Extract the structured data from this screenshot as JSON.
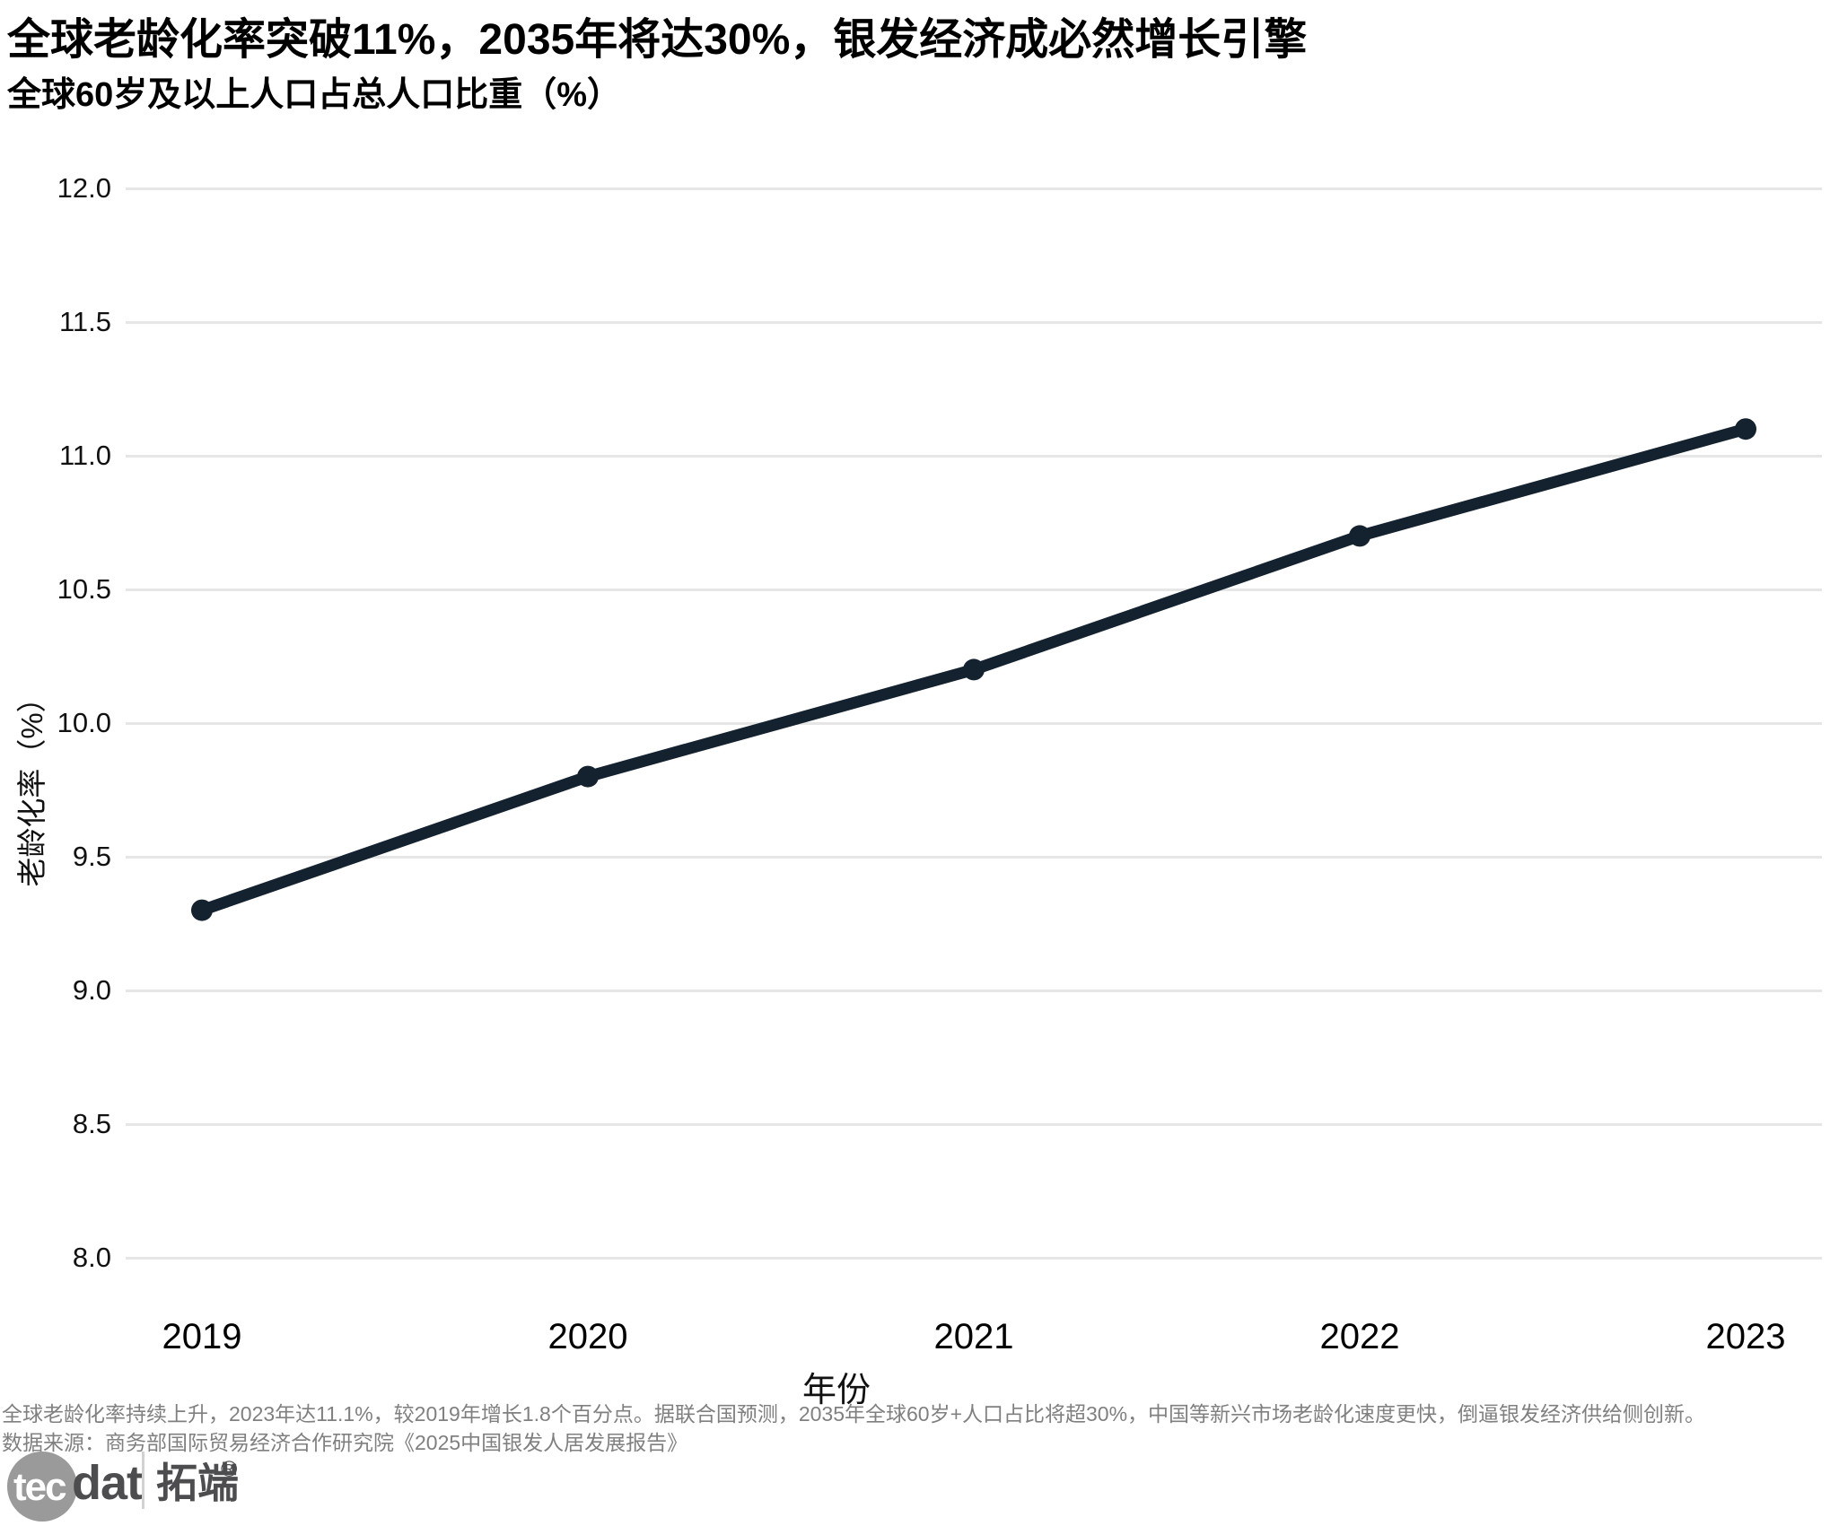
{
  "header": {
    "title": "全球老龄化率突破11%，2035年将达30%，银发经济成必然增长引擎",
    "subtitle": "全球60岁及以上人口占总人口比重（%）"
  },
  "chart_data": {
    "type": "line",
    "title": "全球60岁及以上人口占总人口比重（%）",
    "xlabel": "年份",
    "ylabel": "老龄化率（%）",
    "categories": [
      "2019",
      "2020",
      "2021",
      "2022",
      "2023"
    ],
    "series": [
      {
        "name": "全球老龄化率",
        "values": [
          9.3,
          9.8,
          10.2,
          10.7,
          11.1
        ]
      }
    ],
    "ylim": [
      8.0,
      12.0
    ],
    "yticks": [
      12.0,
      11.5,
      11.0,
      10.5,
      10.0,
      9.5,
      9.0,
      8.5,
      8.0
    ],
    "ytick_labels": [
      "12.0",
      "11.5",
      "11.0",
      "10.5",
      "10.0",
      "9.5",
      "9.0",
      "8.5",
      "8.0"
    ],
    "grid": "horizontal",
    "legend": "none",
    "line_color": "#14212e",
    "grid_color": "#e6e6e6"
  },
  "footer": {
    "line1": "全球老龄化率持续上升，2023年达11.1%，较2019年增长1.8个百分点。据联合国预测，2035年全球60岁+人口占比将超30%，中国等新兴市场老龄化速度更快，倒逼银发经济供给侧创新。",
    "line2": "数据来源：商务部国际贸易经济合作研究院《2025中国银发人居发展报告》"
  },
  "logo": {
    "tec": "tec",
    "dat": "dat",
    "cn": "拓端",
    "reg": "®"
  }
}
